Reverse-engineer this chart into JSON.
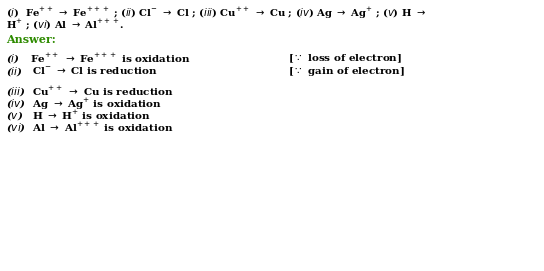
{
  "bg_color": "#ffffff",
  "question_color": "#000000",
  "answer_label_color": "#2e8b00",
  "answer_text_color": "#000000",
  "figsize": [
    5.44,
    2.71
  ],
  "dpi": 100
}
